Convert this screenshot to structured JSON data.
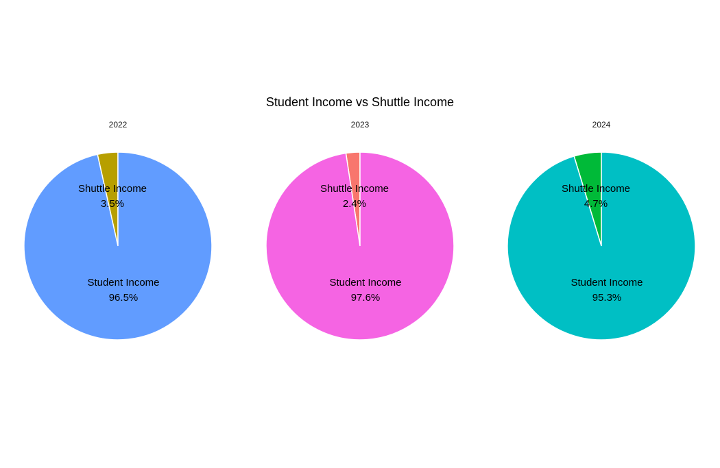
{
  "chart_data": {
    "type": "pie",
    "title": "Student Income vs Shuttle Income",
    "panels": [
      {
        "facet": "2022",
        "slices": [
          {
            "label": "Shuttle Income",
            "value": 3.5,
            "display": "3.5%",
            "color": "#B79F00"
          },
          {
            "label": "Student Income",
            "value": 96.5,
            "display": "96.5%",
            "color": "#619CFF"
          }
        ]
      },
      {
        "facet": "2023",
        "slices": [
          {
            "label": "Shuttle Income",
            "value": 2.4,
            "display": "2.4%",
            "color": "#F8766D"
          },
          {
            "label": "Student Income",
            "value": 97.6,
            "display": "97.6%",
            "color": "#F564E3"
          }
        ]
      },
      {
        "facet": "2024",
        "slices": [
          {
            "label": "Shuttle Income",
            "value": 4.7,
            "display": "4.7%",
            "color": "#00BA38"
          },
          {
            "label": "Student Income",
            "value": 95.3,
            "display": "95.3%",
            "color": "#00BFC4"
          }
        ]
      }
    ]
  }
}
